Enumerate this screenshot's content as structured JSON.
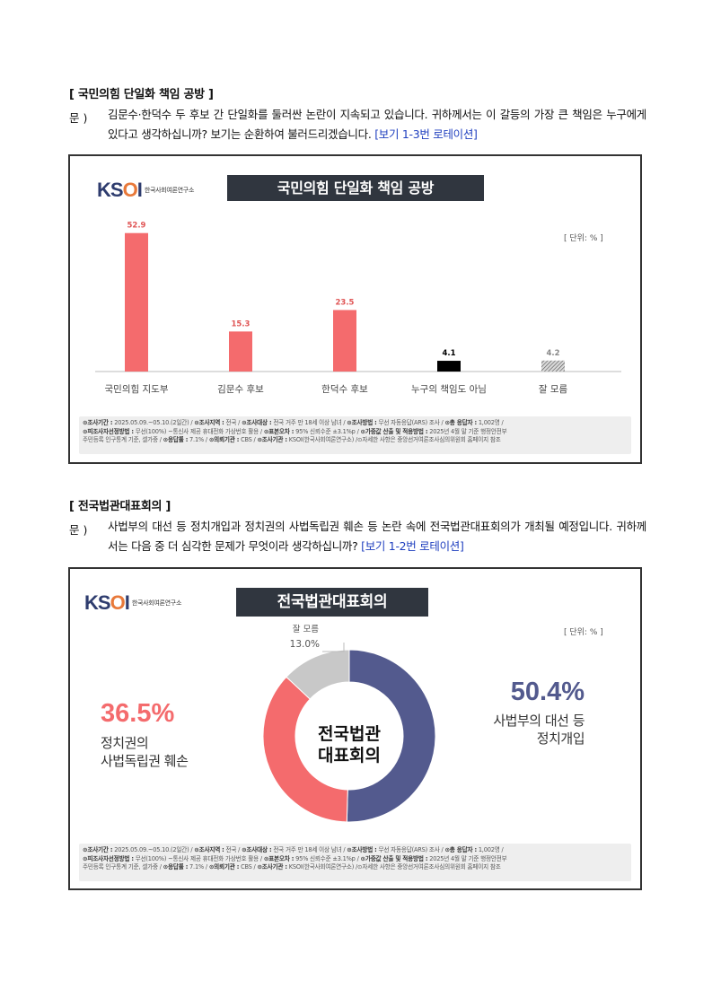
{
  "section1": {
    "heading": "[ 국민의힘 단일화 책임 공방 ]",
    "q_prefix": "문 )",
    "question": "김문수·한덕수 두 후보 간 단일화를 둘러싼 논란이 지속되고 있습니다. 귀하께서는 이 갈등의 가장 큰 책임은 누구에게 있다고 생각하십니까? 보기는 순환하여 불러드리겠습니다.",
    "rotation": "[보기 1-3번 로테이션]",
    "logo_text": "KSOI",
    "logo_sub": "한국사회여론연구소",
    "banner": "국민의힘 단일화 책임 공방",
    "unit": "[ 단위: % ]",
    "chart_data": {
      "type": "bar",
      "title": "국민의힘 단일화 책임 공방",
      "categories": [
        "국민의힘 지도부",
        "김문수 후보",
        "한덕수 후보",
        "누구의 책임도 아님",
        "잘 모름"
      ],
      "values": [
        52.9,
        15.3,
        23.5,
        4.1,
        4.2
      ],
      "value_labels": [
        "52.9",
        "15.3",
        "23.5",
        "4.1",
        "4.2"
      ],
      "colors": [
        "#f46b6d",
        "#f46b6d",
        "#f46b6d",
        "#000000",
        "#bfbfbf"
      ],
      "label_colors": [
        "#e05555",
        "#e05555",
        "#e05555",
        "#000000",
        "#888888"
      ],
      "patterns": [
        "solid",
        "solid",
        "solid",
        "solid",
        "hatch"
      ],
      "ylim": [
        0,
        60
      ],
      "grid": false
    }
  },
  "section2": {
    "heading": "[ 전국법관대표회의 ]",
    "q_prefix": "문 )",
    "question": "사법부의 대선 등 정치개입과 정치권의 사법독립권 훼손 등 논란 속에 전국법관대표회의가 개최될 예정입니다. 귀하께서는 다음 중 더 심각한 문제가 무엇이라 생각하십니까?",
    "rotation": "[보기 1-2번 로테이션]",
    "logo_text": "KSOI",
    "logo_sub": "한국사회여론연구소",
    "banner": "전국법관대표회의",
    "unit": "[ 단위: % ]",
    "center_label_1": "전국법관",
    "center_label_2": "대표회의",
    "chart_data": {
      "type": "pie",
      "title": "전국법관대표회의",
      "categories": [
        "사법부의 대선 등 정치개입",
        "정치권의 사법독립권 훼손",
        "잘 모름"
      ],
      "values": [
        50.4,
        36.5,
        13.0
      ],
      "colors": [
        "#535a8e",
        "#f46b6d",
        "#c8c8c8"
      ]
    },
    "right": {
      "pct": "50.4%",
      "line1": "사법부의 대선 등",
      "line2": "정치개입",
      "color": "#535a8e"
    },
    "left": {
      "pct": "36.5%",
      "line1": "정치권의",
      "line2": "사법독립권 훼손",
      "color": "#f46b6d"
    },
    "dk": {
      "label": "잘 모름",
      "pct": "13.0%"
    }
  },
  "footer": {
    "l1a": "⊙조사기간 :",
    "l1b": "2025.05.09.~05.10.(2일간) /",
    "l1c": "⊙조사지역 :",
    "l1d": "전국 /",
    "l1e": "⊙조사대상 :",
    "l1f": "전국 거주 만 18세 이상 남녀 /",
    "l1g": "⊙조사방법 :",
    "l1h": "무선 자동응답(ARS) 조사 /",
    "l1i": "⊙총 응답자 :",
    "l1j": "1,002명 /",
    "l2a": "⊙피조사자선정방법 :",
    "l2b": "무선(100%) ~통신사 제공 휴대전화 가상번호 활용 /",
    "l2c": "⊙표본오차 :",
    "l2d": "95% 신뢰수준 ±3.1%p /",
    "l2e": "⊙가중값 산출 및 적용방법 :",
    "l2f": "2025년 4월 말 기준 행정안전부",
    "l3a": "주민등록 인구통계 기준, 셀가중 /",
    "l3b": "⊙응답률 :",
    "l3c": "7.1% /",
    "l3d": "⊙의뢰기관 :",
    "l3e": "CBS /",
    "l3f": "⊙조사기관 :",
    "l3g": "KSOI(한국사회여론연구소) /⊙자세한 사항은 중앙선거여론조사심의위원회 홈페이지 참조"
  }
}
